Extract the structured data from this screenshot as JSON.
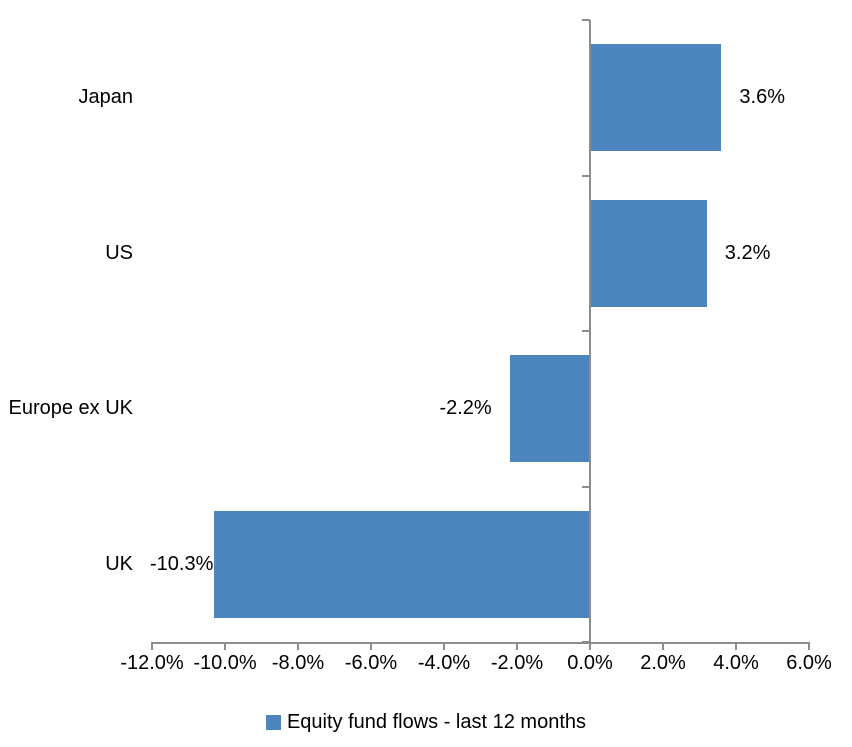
{
  "chart_data": {
    "type": "bar",
    "orientation": "horizontal",
    "title": "",
    "xlabel": "",
    "ylabel": "",
    "categories": [
      "Japan",
      "US",
      "Europe ex UK",
      "UK"
    ],
    "series": [
      {
        "name": "Equity fund flows - last 12 months",
        "values": [
          3.6,
          3.2,
          -2.2,
          -10.3
        ],
        "data_labels": [
          "3.6%",
          "3.2%",
          "-2.2%",
          "-10.3%"
        ]
      }
    ],
    "xlim": [
      -12,
      6
    ],
    "x_tick_step": 2,
    "x_tick_labels": [
      "-12.0%",
      "-10.0%",
      "-8.0%",
      "-6.0%",
      "-4.0%",
      "-2.0%",
      "0.0%",
      "2.0%",
      "4.0%",
      "6.0%"
    ],
    "grid": false,
    "legend_position": "bottom",
    "bar_color": "#4D86BE",
    "axis_color": "#8C8C8C",
    "text_color": "#000000"
  },
  "legend": {
    "label": "Equity fund flows - last 12 months",
    "marker_color": "#4D86BE",
    "marker_icon": "square-icon"
  }
}
